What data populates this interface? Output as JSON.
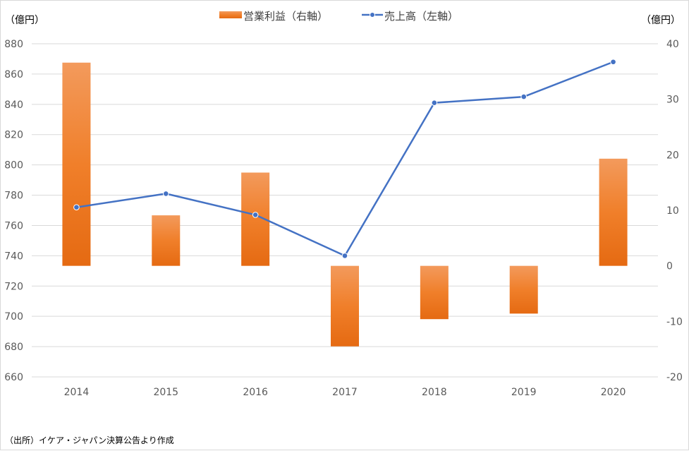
{
  "chart_data": {
    "type": "bar+line",
    "categories": [
      "2014",
      "2015",
      "2016",
      "2017",
      "2018",
      "2019",
      "2020"
    ],
    "series": [
      {
        "name": "営業利益（右軸）",
        "type": "bar",
        "axis": "right",
        "color": "#F07F2A",
        "values": [
          36.6,
          9.1,
          16.8,
          -14.5,
          -9.6,
          -8.6,
          19.3
        ]
      },
      {
        "name": "売上高（左軸）",
        "type": "line",
        "axis": "left",
        "color": "#4472C4",
        "values": [
          772,
          781,
          767,
          740,
          841,
          845,
          868
        ]
      }
    ],
    "y_left": {
      "unit": "（億円）",
      "range": [
        660,
        880
      ],
      "ticks": [
        660,
        680,
        700,
        720,
        740,
        760,
        780,
        800,
        820,
        840,
        860,
        880
      ]
    },
    "y_right": {
      "unit": "（億円）",
      "range": [
        -20,
        40
      ],
      "ticks": [
        -20,
        -10,
        0,
        10,
        20,
        30,
        40
      ]
    },
    "grid": true,
    "legend": "top-center",
    "source": "（出所）イケア・ジャパン決算公告より作成"
  }
}
